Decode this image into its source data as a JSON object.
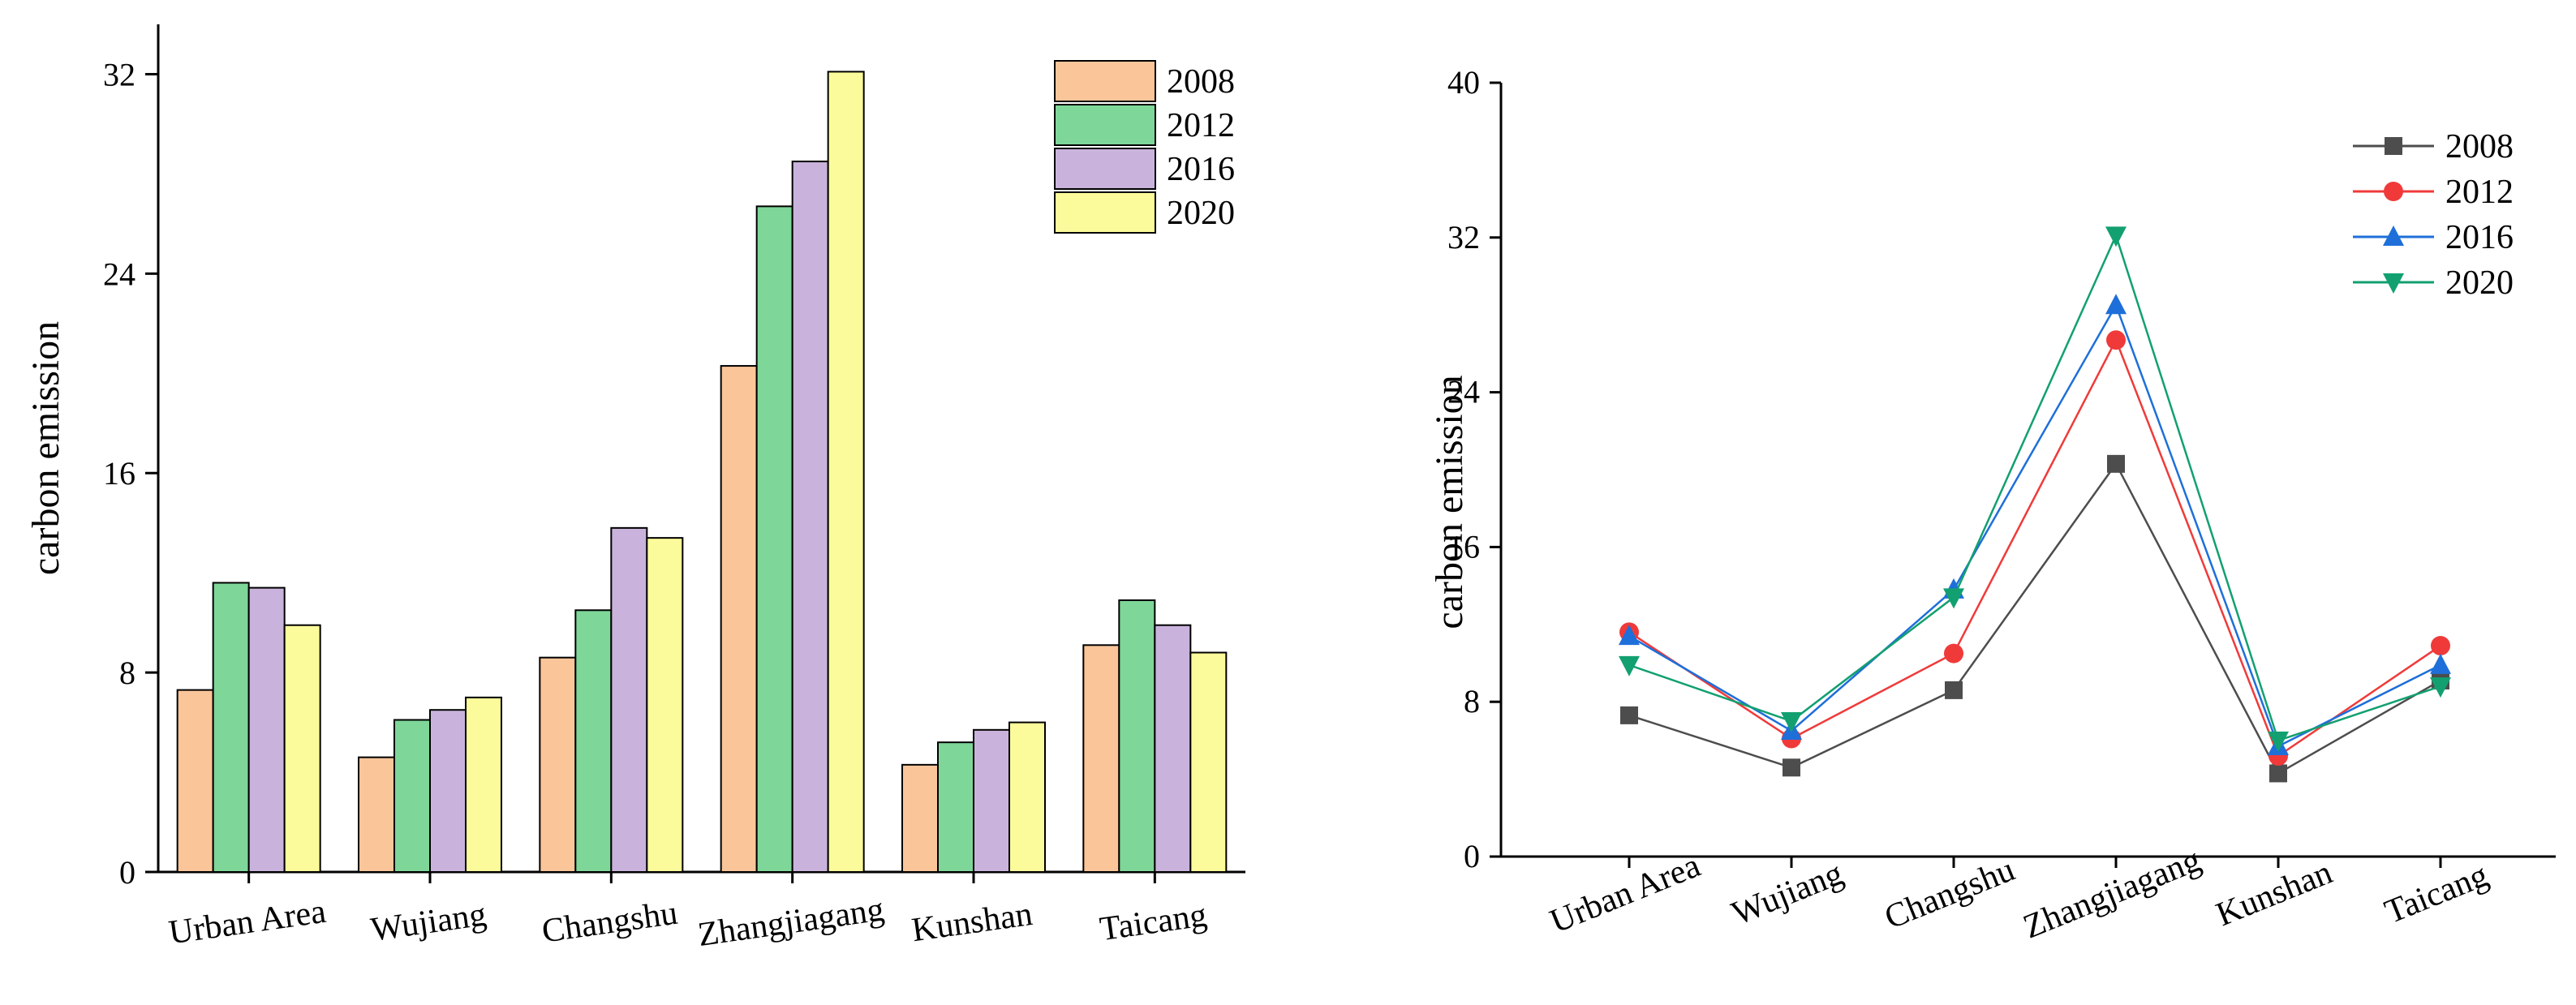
{
  "chart_data": [
    {
      "type": "bar",
      "title": "",
      "xlabel": "",
      "ylabel": "carbon emission",
      "ylim": [
        0,
        34
      ],
      "yticks": [
        0,
        8,
        16,
        24,
        32
      ],
      "categories": [
        "Urban Area",
        "Wujiang",
        "Changshu",
        "Zhangjiagang",
        "Kunshan",
        "Taicang"
      ],
      "legend_position": "top-right",
      "series": [
        {
          "name": "2008",
          "color": "#FBC59A",
          "values": [
            7.3,
            4.6,
            8.6,
            20.3,
            4.3,
            9.1
          ]
        },
        {
          "name": "2012",
          "color": "#7ED699",
          "values": [
            11.6,
            6.1,
            10.5,
            26.7,
            5.2,
            10.9
          ]
        },
        {
          "name": "2016",
          "color": "#C9B3DC",
          "values": [
            11.4,
            6.5,
            13.8,
            28.5,
            5.7,
            9.9
          ]
        },
        {
          "name": "2020",
          "color": "#FCFB9B",
          "values": [
            9.9,
            7.0,
            13.4,
            32.1,
            6.0,
            8.8
          ]
        }
      ]
    },
    {
      "type": "line",
      "title": "",
      "xlabel": "",
      "ylabel": "carbon emission",
      "ylim": [
        0,
        40
      ],
      "yticks": [
        0,
        8,
        16,
        24,
        32,
        40
      ],
      "categories": [
        "Urban Area",
        "Wujiang",
        "Changshu",
        "Zhangjiagang",
        "Kunshan",
        "Taicang"
      ],
      "legend_position": "top-right",
      "series": [
        {
          "name": "2008",
          "color": "#4D4D4D",
          "marker": "square",
          "values": [
            7.3,
            4.6,
            8.6,
            20.3,
            4.3,
            9.1
          ]
        },
        {
          "name": "2012",
          "color": "#F03A3A",
          "marker": "circle",
          "values": [
            11.6,
            6.1,
            10.5,
            26.7,
            5.2,
            10.9
          ]
        },
        {
          "name": "2016",
          "color": "#1E6FD9",
          "marker": "triangle-up",
          "values": [
            11.4,
            6.5,
            13.8,
            28.5,
            5.7,
            9.9
          ]
        },
        {
          "name": "2020",
          "color": "#12A070",
          "marker": "triangle-down",
          "values": [
            9.9,
            7.0,
            13.4,
            32.1,
            6.0,
            8.8
          ]
        }
      ]
    }
  ]
}
